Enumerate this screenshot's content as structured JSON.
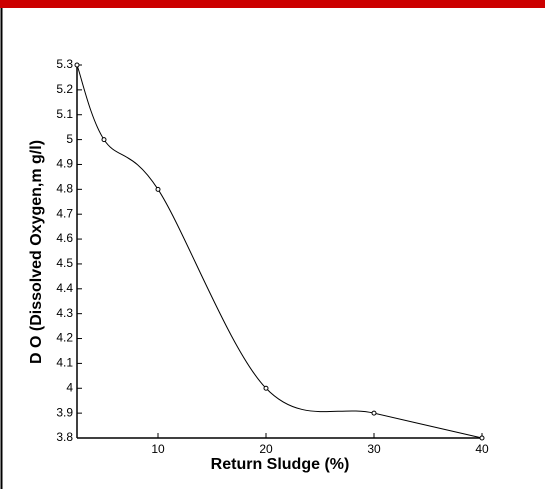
{
  "chart_data": {
    "type": "line",
    "x_label": "Return Sludge (%)",
    "y_label": "D O (Dissolved Oxygen,m g/l)",
    "x": [
      2.5,
      5,
      10,
      20,
      30,
      40
    ],
    "series": [
      {
        "color": "#000000",
        "values": [
          5.3,
          5.0,
          4.8,
          4.0,
          3.9,
          3.8
        ]
      }
    ],
    "xlim": [
      2.5,
      40
    ],
    "xticks": [
      10,
      20,
      30,
      40
    ],
    "ylim": [
      3.8,
      5.3
    ],
    "yticks": [
      3.8,
      3.9,
      4,
      4.1,
      4.2,
      4.3,
      4.4,
      4.5,
      4.6,
      4.7,
      4.8,
      4.9,
      5,
      5.1,
      5.2,
      5.3
    ]
  }
}
